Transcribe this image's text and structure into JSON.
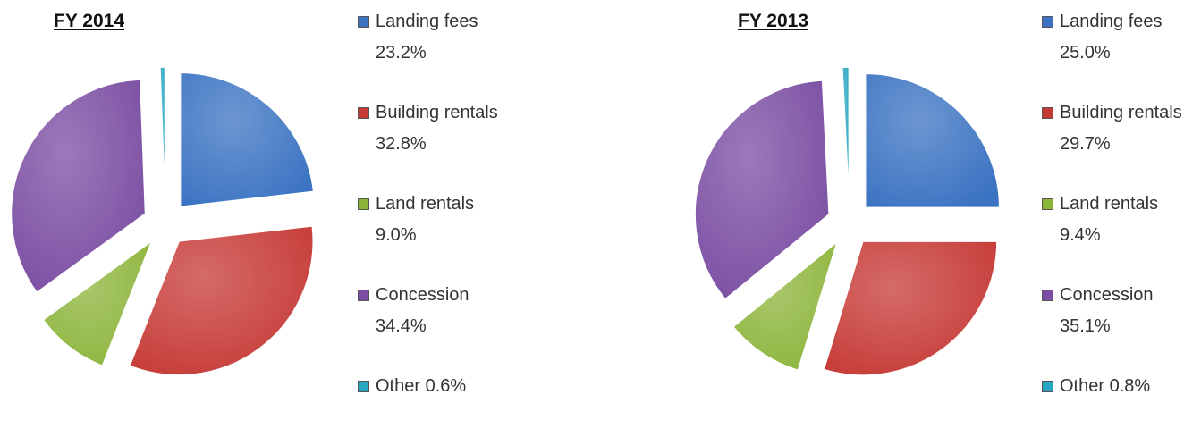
{
  "chart_data": [
    {
      "type": "pie",
      "title": "FY 2014",
      "categories": [
        "Landing fees",
        "Building rentals",
        "Land rentals",
        "Concession",
        "Other"
      ],
      "values": [
        23.2,
        32.8,
        9.0,
        34.4,
        0.6
      ],
      "value_labels": [
        "23.2%",
        "32.8%",
        "9.0%",
        "34.4%",
        "0.6%"
      ],
      "colors": [
        "#3b73c2",
        "#c63a36",
        "#8db53c",
        "#7a4da2",
        "#27a6c2"
      ]
    },
    {
      "type": "pie",
      "title": "FY 2013",
      "categories": [
        "Landing fees",
        "Building rentals",
        "Land rentals",
        "Concession",
        "Other"
      ],
      "values": [
        25.0,
        29.7,
        9.4,
        35.1,
        0.8
      ],
      "value_labels": [
        "25.0%",
        "29.7%",
        "9.4%",
        "35.1%",
        "0.8%"
      ],
      "colors": [
        "#3b73c2",
        "#c63a36",
        "#8db53c",
        "#7a4da2",
        "#27a6c2"
      ]
    }
  ]
}
